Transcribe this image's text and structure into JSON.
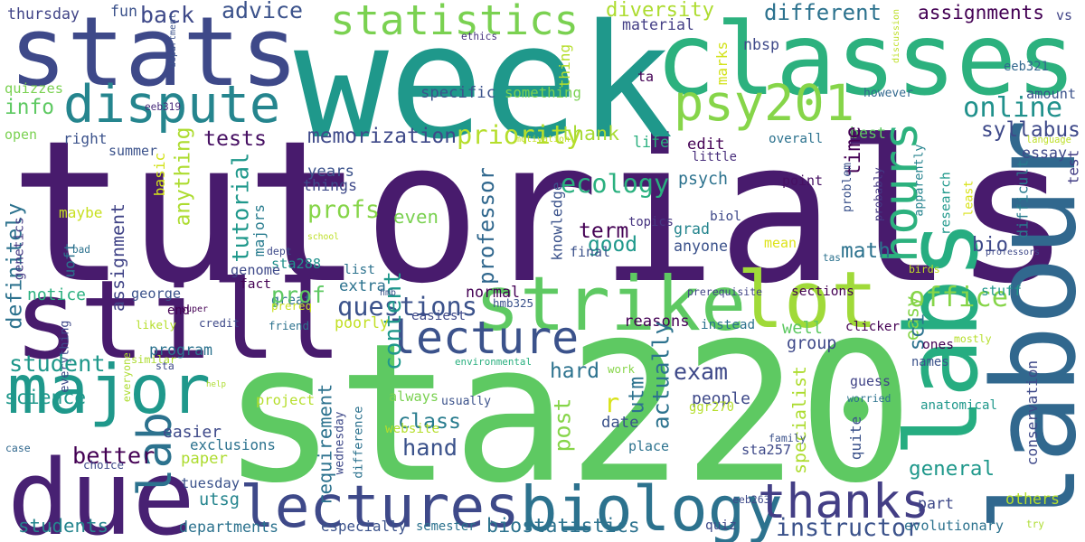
{
  "words": [
    {
      "text": "tutorials",
      "color": "#481b6d"
    },
    {
      "text": "sta220",
      "color": "#5ec962"
    },
    {
      "text": "week",
      "color": "#1f988b"
    },
    {
      "text": "stats",
      "color": "#3e4989"
    },
    {
      "text": "classes",
      "color": "#2cb17e"
    },
    {
      "text": "still",
      "color": "#481b6d"
    },
    {
      "text": "due",
      "color": "#482173"
    },
    {
      "text": "labs",
      "color": "#26ad81"
    },
    {
      "text": "labour",
      "color": "#31688e"
    },
    {
      "text": "strike",
      "color": "#5ec962"
    },
    {
      "text": "lot",
      "color": "#a0da39"
    },
    {
      "text": "major",
      "color": "#1f988b"
    },
    {
      "text": "dispute",
      "color": "#25858e"
    },
    {
      "text": "psy201",
      "color": "#86d549"
    },
    {
      "text": "lectures",
      "color": "#3e4989"
    },
    {
      "text": "biology",
      "color": "#2c728e"
    },
    {
      "text": "thanks",
      "color": "#433e85"
    },
    {
      "text": "lecture",
      "color": "#3b528b"
    },
    {
      "text": "statistics",
      "color": "#7ad151"
    },
    {
      "text": "hours",
      "color": "#2cb17e"
    },
    {
      "text": "lab",
      "color": "#2c728e"
    },
    {
      "text": "office",
      "color": "#86d549"
    },
    {
      "text": "online",
      "color": "#21918c"
    },
    {
      "text": "diversity",
      "color": "#addc30"
    },
    {
      "text": "different",
      "color": "#2c728e"
    },
    {
      "text": "assignments",
      "color": "#440154"
    },
    {
      "text": "advice",
      "color": "#3b528b"
    },
    {
      "text": "back",
      "color": "#3e4989"
    },
    {
      "text": "thursday",
      "color": "#414487"
    },
    {
      "text": "fun",
      "color": "#3b528b"
    },
    {
      "text": "ethics",
      "color": "#46327e"
    },
    {
      "text": "material",
      "color": "#433e85"
    },
    {
      "text": "nbsp",
      "color": "#3e4989"
    },
    {
      "text": "discussion",
      "color": "#bddf26"
    },
    {
      "text": "vs",
      "color": "#414487"
    },
    {
      "text": "eeb321",
      "color": "#31688e"
    },
    {
      "text": "amount",
      "color": "#3b528b"
    },
    {
      "text": "however",
      "color": "#31688e"
    },
    {
      "text": "syllabus",
      "color": "#3e4989"
    },
    {
      "text": "best",
      "color": "#5ec962"
    },
    {
      "text": "time",
      "color": "#440154"
    },
    {
      "text": "info",
      "color": "#5ec962"
    },
    {
      "text": "quizzes",
      "color": "#7ad151"
    },
    {
      "text": "eeb319",
      "color": "#472a7a"
    },
    {
      "text": "department",
      "color": "#3b528b"
    },
    {
      "text": "specific",
      "color": "#3b528b"
    },
    {
      "text": "something",
      "color": "#7ad151"
    },
    {
      "text": "ta",
      "color": "#440154"
    },
    {
      "text": "thing",
      "color": "#b5de2b"
    },
    {
      "text": "marks",
      "color": "#d2e21b"
    },
    {
      "text": "memorization",
      "color": "#3e4989"
    },
    {
      "text": "priority",
      "color": "#b5de2b"
    },
    {
      "text": "thank",
      "color": "#a8db34"
    },
    {
      "text": "tests",
      "color": "#471063"
    },
    {
      "text": "open",
      "color": "#7ad151"
    },
    {
      "text": "right",
      "color": "#3b528b"
    },
    {
      "text": "summer",
      "color": "#3b528b"
    },
    {
      "text": "motivation",
      "color": "#c2df23"
    },
    {
      "text": "life",
      "color": "#2ab07f"
    },
    {
      "text": "edit",
      "color": "#440154"
    },
    {
      "text": "little",
      "color": "#472d7b"
    },
    {
      "text": "overall",
      "color": "#2c728e"
    },
    {
      "text": "language",
      "color": "#bddf26"
    },
    {
      "text": "test",
      "color": "#433e85"
    },
    {
      "text": "difficult",
      "color": "#287c8e"
    },
    {
      "text": "least",
      "color": "#d8e219"
    },
    {
      "text": "essay",
      "color": "#3e4989"
    },
    {
      "text": "ecology",
      "color": "#2ab07f"
    },
    {
      "text": "psych",
      "color": "#2c728e"
    },
    {
      "text": "point",
      "color": "#471063"
    },
    {
      "text": "problem",
      "color": "#3b528b"
    },
    {
      "text": "probably",
      "color": "#443983"
    },
    {
      "text": "apparently",
      "color": "#25838e"
    },
    {
      "text": "research",
      "color": "#1f988b"
    },
    {
      "text": "definitely",
      "color": "#2c728e"
    },
    {
      "text": "assignment",
      "color": "#414487"
    },
    {
      "text": "tutorial",
      "color": "#1f988b"
    },
    {
      "text": "anything",
      "color": "#addc30"
    },
    {
      "text": "basic",
      "color": "#d2e21b"
    },
    {
      "text": "years",
      "color": "#3b528b"
    },
    {
      "text": "things",
      "color": "#3e4989"
    },
    {
      "text": "profs",
      "color": "#86d549"
    },
    {
      "text": "even",
      "color": "#7ad151"
    },
    {
      "text": "term",
      "color": "#440154"
    },
    {
      "text": "topics",
      "color": "#463480"
    },
    {
      "text": "grad",
      "color": "#25858e"
    },
    {
      "text": "biol",
      "color": "#3e4989"
    },
    {
      "text": "anyone",
      "color": "#3b528b"
    },
    {
      "text": "math",
      "color": "#2c728e"
    },
    {
      "text": "bio",
      "color": "#3e4989"
    },
    {
      "text": "mean",
      "color": "#dde318"
    },
    {
      "text": "professors",
      "color": "#3e4989"
    },
    {
      "text": "birds",
      "color": "#c2df23"
    },
    {
      "text": "good",
      "color": "#1f988b"
    },
    {
      "text": "professor",
      "color": "#31688e"
    },
    {
      "text": "knowledge",
      "color": "#3b528b"
    },
    {
      "text": "maybe",
      "color": "#c8e020"
    },
    {
      "text": "majors",
      "color": "#287c8e"
    },
    {
      "text": "uoft",
      "color": "#2c728e"
    },
    {
      "text": "genetics",
      "color": "#443983"
    },
    {
      "text": "bad",
      "color": "#2c728e"
    },
    {
      "text": "dept",
      "color": "#3e4989"
    },
    {
      "text": "school",
      "color": "#bddf26"
    },
    {
      "text": "sta288",
      "color": "#21918c"
    },
    {
      "text": "genome",
      "color": "#3e4989"
    },
    {
      "text": "list",
      "color": "#2c728e"
    },
    {
      "text": "extra",
      "color": "#2c728e"
    },
    {
      "text": "fact",
      "color": "#440154"
    },
    {
      "text": "great",
      "color": "#2c728e"
    },
    {
      "text": "questions",
      "color": "#3b528b"
    },
    {
      "text": "final",
      "color": "#3b528b"
    },
    {
      "text": "tas",
      "color": "#2c728e"
    },
    {
      "text": "content",
      "color": "#1f988b"
    },
    {
      "text": "prof",
      "color": "#5ec962"
    },
    {
      "text": "notice",
      "color": "#2ab07f"
    },
    {
      "text": "george",
      "color": "#3b528b"
    },
    {
      "text": "normal",
      "color": "#440154"
    },
    {
      "text": "hmb",
      "color": "#3b528b"
    },
    {
      "text": "prerequisite",
      "color": "#414487"
    },
    {
      "text": "sections",
      "color": "#440154"
    },
    {
      "text": "stuff",
      "color": "#1f988b"
    },
    {
      "text": "easy",
      "color": "#86d549"
    },
    {
      "text": "well",
      "color": "#5ec962"
    },
    {
      "text": "program",
      "color": "#2c728e"
    },
    {
      "text": "super",
      "color": "#440154"
    },
    {
      "text": "end",
      "color": "#440154"
    },
    {
      "text": "credit",
      "color": "#3e4989"
    },
    {
      "text": "friend",
      "color": "#2c728e"
    },
    {
      "text": "likely",
      "color": "#b5de2b"
    },
    {
      "text": "everything",
      "color": "#3e4989"
    },
    {
      "text": "poorly",
      "color": "#c2df23"
    },
    {
      "text": "prereq",
      "color": "#c8e020"
    },
    {
      "text": "easiest",
      "color": "#3e4989"
    },
    {
      "text": "hmb325",
      "color": "#3b528b"
    },
    {
      "text": "reasons",
      "color": "#440154"
    },
    {
      "text": "instead",
      "color": "#2c728e"
    },
    {
      "text": "clicker",
      "color": "#440154"
    },
    {
      "text": "sci",
      "color": "#2c728e"
    },
    {
      "text": "mostly",
      "color": "#b5de2b"
    },
    {
      "text": "group",
      "color": "#3e4989"
    },
    {
      "text": "ones",
      "color": "#440154"
    },
    {
      "text": "names",
      "color": "#3b528b"
    },
    {
      "text": "student",
      "color": "#1f988b"
    },
    {
      "text": "similar",
      "color": "#addc30"
    },
    {
      "text": "environmental",
      "color": "#2ab07f"
    },
    {
      "text": "sta",
      "color": "#3e4989"
    },
    {
      "text": "everyone",
      "color": "#addc30"
    },
    {
      "text": "help",
      "color": "#addc30"
    },
    {
      "text": "hard",
      "color": "#2c728e"
    },
    {
      "text": "work",
      "color": "#86d549"
    },
    {
      "text": "exam",
      "color": "#3e4989"
    },
    {
      "text": "utm",
      "color": "#2c728e"
    },
    {
      "text": "actually",
      "color": "#2c728e"
    },
    {
      "text": "specialist",
      "color": "#addc30"
    },
    {
      "text": "guess",
      "color": "#414487"
    },
    {
      "text": "worried",
      "color": "#2c728e"
    },
    {
      "text": "conservation",
      "color": "#3e4989"
    },
    {
      "text": "anatomical",
      "color": "#1f988b"
    },
    {
      "text": "people",
      "color": "#3e4989"
    },
    {
      "text": "ggr270",
      "color": "#b5de2b"
    },
    {
      "text": "project",
      "color": "#b5de2b"
    },
    {
      "text": "always",
      "color": "#7ad151"
    },
    {
      "text": "usually",
      "color": "#3b528b"
    },
    {
      "text": "r",
      "color": "#d8e219"
    },
    {
      "text": "science",
      "color": "#1f988b"
    },
    {
      "text": "easier",
      "color": "#3e4989"
    },
    {
      "text": "class",
      "color": "#287c8e"
    },
    {
      "text": "post",
      "color": "#86d549"
    },
    {
      "text": "date",
      "color": "#3b528b"
    },
    {
      "text": "requirement",
      "color": "#2c728e"
    },
    {
      "text": "difference",
      "color": "#2c728e"
    },
    {
      "text": "wednesday",
      "color": "#3e4989"
    },
    {
      "text": "website",
      "color": "#b5de2b"
    },
    {
      "text": "quite",
      "color": "#3b528b"
    },
    {
      "text": "family",
      "color": "#3b528b"
    },
    {
      "text": "better",
      "color": "#440154"
    },
    {
      "text": "hand",
      "color": "#3b528b"
    },
    {
      "text": "exclusions",
      "color": "#2c728e"
    },
    {
      "text": "place",
      "color": "#2c728e"
    },
    {
      "text": "sta257",
      "color": "#3e4989"
    },
    {
      "text": "general",
      "color": "#1f988b"
    },
    {
      "text": "case",
      "color": "#31688e"
    },
    {
      "text": "choice",
      "color": "#3e4989"
    },
    {
      "text": "paper",
      "color": "#addc30"
    },
    {
      "text": "tuesday",
      "color": "#3b528b"
    },
    {
      "text": "utsg",
      "color": "#25858e"
    },
    {
      "text": "part",
      "color": "#3e4989"
    },
    {
      "text": "instructor",
      "color": "#3b528b"
    },
    {
      "text": "eeb263",
      "color": "#3e4989"
    },
    {
      "text": "others",
      "color": "#b5de2b"
    },
    {
      "text": "try",
      "color": "#addc30"
    },
    {
      "text": "students",
      "color": "#25858e"
    },
    {
      "text": "departments",
      "color": "#2c728e"
    },
    {
      "text": "especially",
      "color": "#3b528b"
    },
    {
      "text": "semester",
      "color": "#2c728e"
    },
    {
      "text": "biostatistics",
      "color": "#2c728e"
    },
    {
      "text": "quiz",
      "color": "#3e4989"
    },
    {
      "text": "evolutionary",
      "color": "#2c728e"
    }
  ]
}
